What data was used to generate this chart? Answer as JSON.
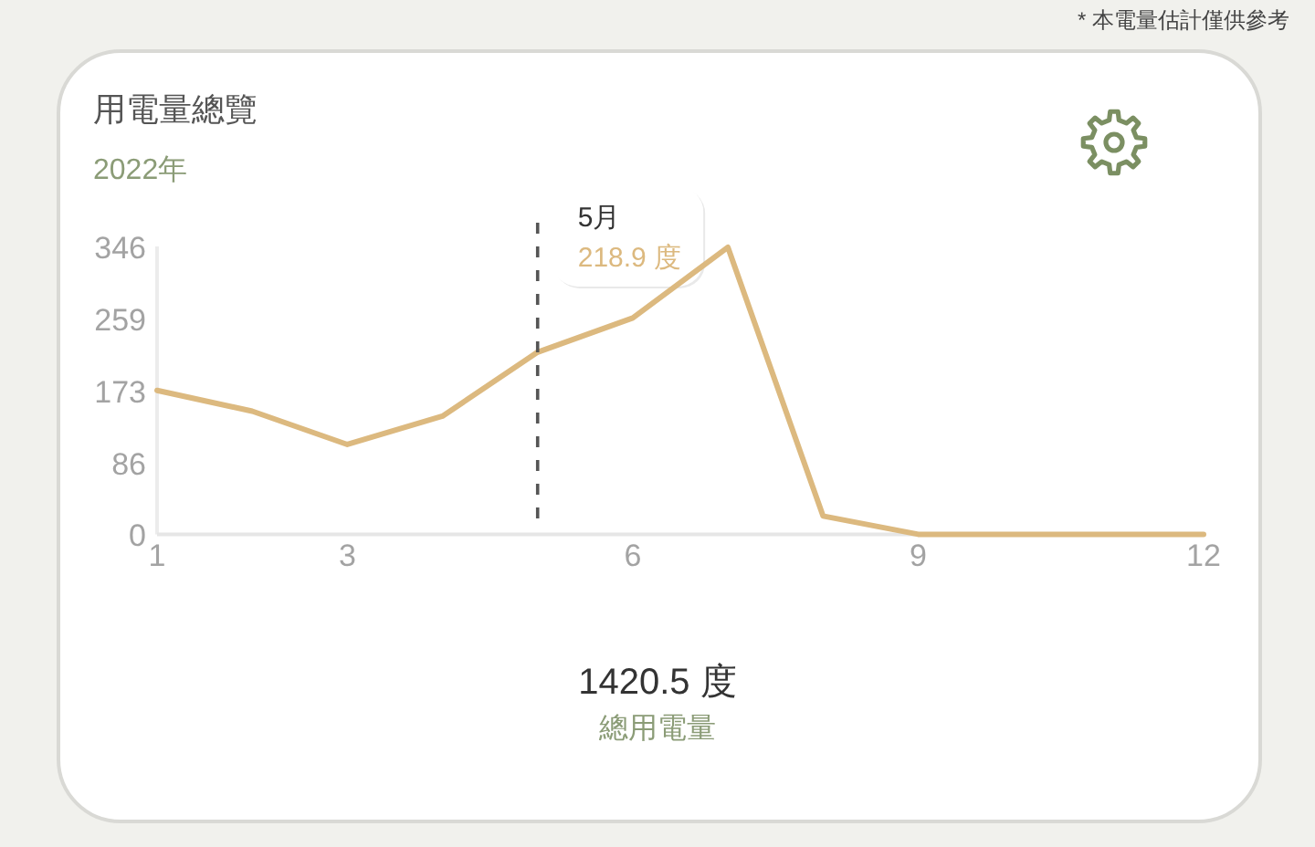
{
  "chart_data": {
    "type": "line",
    "title": "用電量總覽",
    "subtitle": "2022年",
    "x": [
      1,
      2,
      3,
      4,
      5,
      6,
      7,
      8,
      9,
      10,
      11,
      12
    ],
    "values": [
      173,
      148,
      108,
      142,
      218.9,
      260,
      345,
      22,
      0,
      0,
      0,
      0
    ],
    "color": "#dcb97f",
    "line_style": "solid",
    "xlim": [
      1,
      12
    ],
    "xticks": [
      1,
      3,
      6,
      9,
      12
    ],
    "ylim": [
      0,
      346
    ],
    "yticks": [
      0,
      86,
      173,
      259,
      346
    ],
    "ref_lines": [
      {
        "axis": "x",
        "value": 5,
        "label": "5月",
        "color": "#555555",
        "line_style": "dashed"
      }
    ],
    "annotations": [
      "218.9 度",
      "1420.5 度",
      "總用電量",
      "* 本電量估計僅供參考"
    ]
  }
}
